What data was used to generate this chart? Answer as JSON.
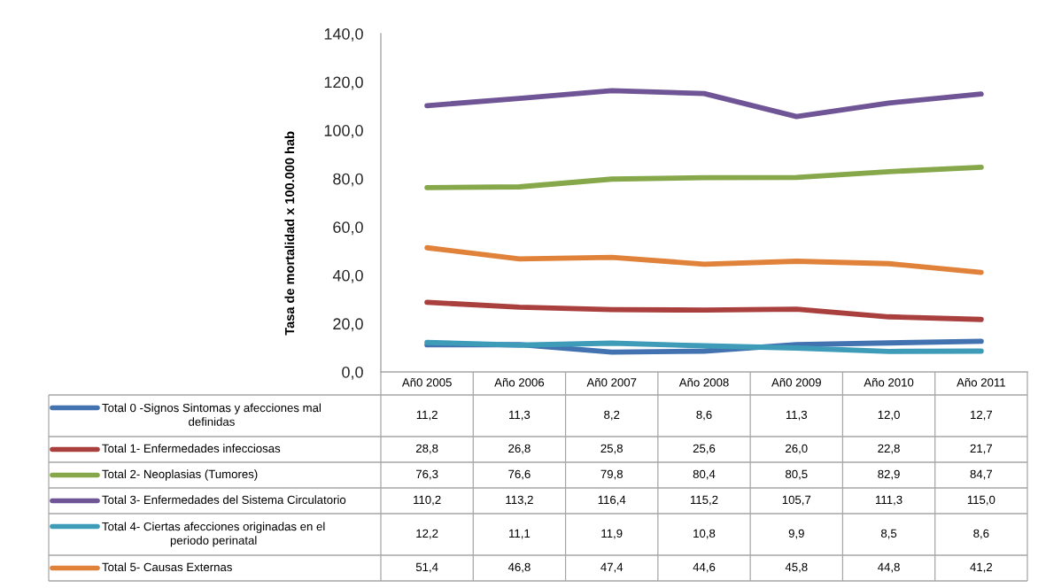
{
  "chart_data": {
    "type": "line",
    "ylabel": "Tasa de mortalidad x 100.000 hab",
    "categories": [
      "Añ0 2005",
      "Año 2006",
      "Añ0 2007",
      "Año 2008",
      "Añ0 2009",
      "Año 2010",
      "Año 2011"
    ],
    "ylim": [
      0,
      140
    ],
    "yticks": [
      {
        "value": 0,
        "label": "0,0"
      },
      {
        "value": 20,
        "label": "20,0"
      },
      {
        "value": 40,
        "label": "40,0"
      },
      {
        "value": 60,
        "label": "60,0"
      },
      {
        "value": 80,
        "label": "80,0"
      },
      {
        "value": 100,
        "label": "100,0"
      },
      {
        "value": 120,
        "label": "120,0"
      },
      {
        "value": 140,
        "label": "140,0"
      }
    ],
    "legend": "bottom",
    "series": [
      {
        "name": "Total 0 -Signos Sintomas y afecciones mal definidas",
        "color": "#4272b0",
        "values": [
          11.2,
          11.3,
          8.2,
          8.6,
          11.3,
          12.0,
          12.7
        ],
        "value_labels": [
          "11,2",
          "11,3",
          "8,2",
          "8,6",
          "11,3",
          "12,0",
          "12,7"
        ]
      },
      {
        "name": "Total 1- Enfermedades infecciosas",
        "color": "#a9403e",
        "values": [
          28.8,
          26.8,
          25.8,
          25.6,
          26.0,
          22.8,
          21.7
        ],
        "value_labels": [
          "28,8",
          "26,8",
          "25,8",
          "25,6",
          "26,0",
          "22,8",
          "21,7"
        ]
      },
      {
        "name": "Total 2- Neoplasias (Tumores)",
        "color": "#86a84a",
        "values": [
          76.3,
          76.6,
          79.8,
          80.4,
          80.5,
          82.9,
          84.7
        ],
        "value_labels": [
          "76,3",
          "76,6",
          "79,8",
          "80,4",
          "80,5",
          "82,9",
          "84,7"
        ]
      },
      {
        "name": "Total 3- Enfermedades del Sistema Circulatorio",
        "color": "#6f5596",
        "values": [
          110.2,
          113.2,
          116.4,
          115.2,
          105.7,
          111.3,
          115.0
        ],
        "value_labels": [
          "110,2",
          "113,2",
          "116,4",
          "115,2",
          "105,7",
          "111,3",
          "115,0"
        ]
      },
      {
        "name": "Total 4- Ciertas afecciones originadas en el periodo perinatal",
        "color": "#3e9cb8",
        "values": [
          12.2,
          11.1,
          11.9,
          10.8,
          9.9,
          8.5,
          8.6
        ],
        "value_labels": [
          "12,2",
          "11,1",
          "11,9",
          "10,8",
          "9,9",
          "8,5",
          "8,6"
        ]
      },
      {
        "name": "Total 5- Causas Externas",
        "color": "#e0823a",
        "values": [
          51.4,
          46.8,
          47.4,
          44.6,
          45.8,
          44.8,
          41.2
        ],
        "value_labels": [
          "51,4",
          "46,8",
          "47,4",
          "44,6",
          "45,8",
          "44,8",
          "41,2"
        ]
      }
    ]
  }
}
